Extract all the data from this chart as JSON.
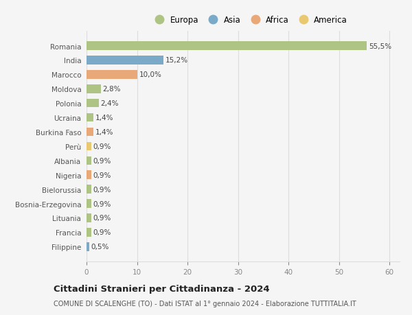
{
  "categories": [
    "Romania",
    "India",
    "Marocco",
    "Moldova",
    "Polonia",
    "Ucraina",
    "Burkina Faso",
    "Perù",
    "Albania",
    "Nigeria",
    "Bielorussia",
    "Bosnia-Erzegovina",
    "Lituania",
    "Francia",
    "Filippine"
  ],
  "values": [
    55.5,
    15.2,
    10.0,
    2.8,
    2.4,
    1.4,
    1.4,
    0.9,
    0.9,
    0.9,
    0.9,
    0.9,
    0.9,
    0.9,
    0.5
  ],
  "labels": [
    "55,5%",
    "15,2%",
    "10,0%",
    "2,8%",
    "2,4%",
    "1,4%",
    "1,4%",
    "0,9%",
    "0,9%",
    "0,9%",
    "0,9%",
    "0,9%",
    "0,9%",
    "0,9%",
    "0,5%"
  ],
  "colors": [
    "#aec484",
    "#7aaac8",
    "#e8a878",
    "#aec484",
    "#aec484",
    "#aec484",
    "#e8a878",
    "#e8c870",
    "#aec484",
    "#e8a878",
    "#aec484",
    "#aec484",
    "#aec484",
    "#aec484",
    "#7aaac8"
  ],
  "legend_labels": [
    "Europa",
    "Asia",
    "Africa",
    "America"
  ],
  "legend_colors": [
    "#aec484",
    "#7aaac8",
    "#e8a878",
    "#e8c870"
  ],
  "xlim": [
    0,
    62
  ],
  "xticks": [
    0,
    10,
    20,
    30,
    40,
    50,
    60
  ],
  "title": "Cittadini Stranieri per Cittadinanza - 2024",
  "subtitle": "COMUNE DI SCALENGHE (TO) - Dati ISTAT al 1° gennaio 2024 - Elaborazione TUTTITALIA.IT",
  "bg_color": "#f5f5f5",
  "grid_color": "#dddddd",
  "bar_height": 0.6,
  "label_fontsize": 7.5,
  "ytick_fontsize": 7.5,
  "xtick_fontsize": 7.5
}
